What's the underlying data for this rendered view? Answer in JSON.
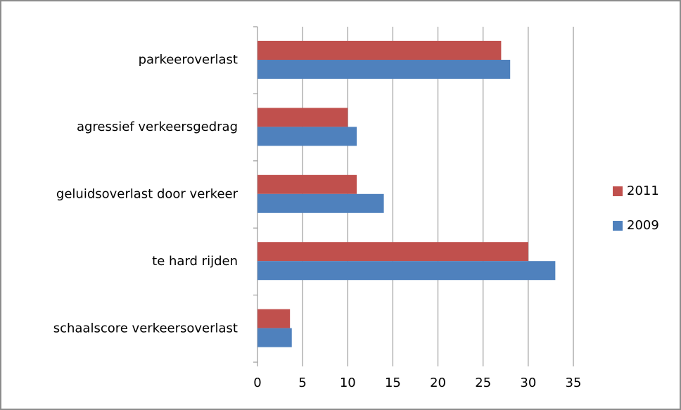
{
  "chart_data": {
    "type": "hbar",
    "categories": [
      "parkeeroverlast",
      "agressief verkeersgedrag",
      "geluidsoverlast door verkeer",
      "te hard rijden",
      "schaalscore verkeersoverlast"
    ],
    "series": [
      {
        "name": "2011",
        "color": "#c0504d",
        "values": [
          27,
          10,
          11,
          30,
          3.6
        ]
      },
      {
        "name": "2009",
        "color": "#4f81bd",
        "values": [
          28,
          11,
          14,
          33,
          3.8
        ]
      }
    ],
    "xlim": [
      0,
      35
    ],
    "xticks": [
      0,
      5,
      10,
      15,
      20,
      25,
      30,
      35
    ],
    "grid": true,
    "legend": "right"
  }
}
